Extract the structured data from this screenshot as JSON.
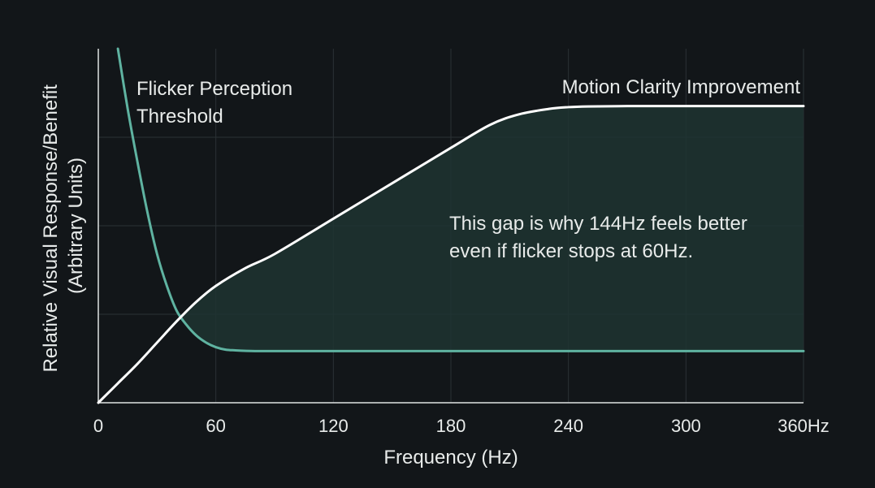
{
  "chart_data": {
    "type": "line",
    "title": "",
    "xlabel": "Frequency (Hz)",
    "ylabel_lines": [
      "Relative Visual Response/Benefit",
      "(Arbitrary Units)"
    ],
    "xlim": [
      0,
      360
    ],
    "ylim": [
      0,
      100
    ],
    "x_ticks": [
      0,
      60,
      120,
      180,
      240,
      300,
      360
    ],
    "x_tick_labels": [
      "0",
      "60",
      "120",
      "180",
      "240",
      "300",
      "360Hz"
    ],
    "y_gridlines": [
      25,
      50,
      75
    ],
    "grid": true,
    "colors": {
      "background": "#121619",
      "flicker": "#5fb3a1",
      "motion": "#ffffff",
      "gap_fill": "#1f3431",
      "grid": "#2b3135",
      "axis": "#dfe3e2",
      "text": "#e8ebea"
    },
    "series": [
      {
        "name": "Flicker Perception Threshold",
        "label_lines": [
          "Flicker Perception",
          "Threshold"
        ],
        "color": "#5fb3a1",
        "x": [
          10,
          15,
          20,
          25,
          30,
          35,
          40,
          45,
          50,
          55,
          60,
          65,
          70,
          80,
          90,
          120,
          180,
          240,
          300,
          360
        ],
        "y": [
          100,
          83,
          68,
          54,
          42,
          33,
          26,
          22,
          19,
          17,
          15.7,
          15,
          14.8,
          14.6,
          14.6,
          14.6,
          14.6,
          14.6,
          14.6,
          14.6
        ]
      },
      {
        "name": "Motion Clarity Improvement",
        "label_lines": [
          "Motion Clarity Improvement"
        ],
        "color": "#ffffff",
        "x": [
          0,
          10,
          20,
          30,
          40,
          50,
          60,
          75,
          90,
          120,
          150,
          180,
          200,
          215,
          230,
          240,
          250,
          270,
          300,
          360
        ],
        "y": [
          0,
          5.5,
          11,
          17,
          23,
          28.5,
          33,
          38,
          42,
          52,
          62,
          72,
          78.5,
          81.5,
          83,
          83.5,
          83.7,
          83.8,
          83.8,
          83.8
        ]
      }
    ],
    "annotation": {
      "lines": [
        "This gap is why 144Hz feels better",
        "even if flicker stops at 60Hz."
      ],
      "x": 178,
      "y": 50
    }
  }
}
